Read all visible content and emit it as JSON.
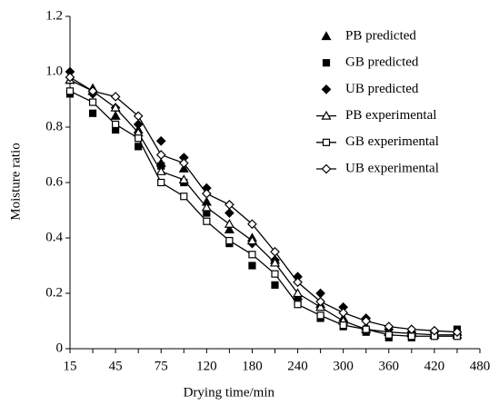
{
  "chart_data": {
    "type": "line",
    "x_label": "Drying time/min",
    "y_label": "Moisture ratio",
    "categories": [
      "15",
      null,
      "45",
      null,
      "75",
      null,
      "120",
      null,
      "180",
      null,
      "240",
      null,
      "300",
      null,
      "360",
      null,
      "420",
      null,
      "480"
    ],
    "ylim": [
      0,
      1.2
    ],
    "yticks": [
      0,
      0.2,
      0.4,
      0.6,
      0.8,
      {
        "value": 1,
        "label": "1.0"
      },
      {
        "value": 1.2,
        "label": "1.2"
      }
    ],
    "legend": "top-right",
    "series": [
      {
        "name": "PB predicted",
        "color": "#000000",
        "marker": "triangle",
        "filled": true,
        "line": false,
        "values": [
          0.97,
          0.94,
          0.84,
          0.79,
          0.67,
          0.65,
          0.53,
          0.43,
          0.4,
          0.32,
          0.19,
          0.16,
          0.11,
          0.08,
          0.06,
          0.06,
          0.05,
          0.06,
          null
        ]
      },
      {
        "name": "GB predicted",
        "color": "#000000",
        "marker": "square",
        "filled": true,
        "line": false,
        "values": [
          0.92,
          0.85,
          0.79,
          0.73,
          0.66,
          0.6,
          0.49,
          0.38,
          0.3,
          0.23,
          0.17,
          0.11,
          0.08,
          0.06,
          0.04,
          0.04,
          0.05,
          0.07,
          null
        ]
      },
      {
        "name": "UB predicted",
        "color": "#000000",
        "marker": "diamond",
        "filled": true,
        "line": false,
        "values": [
          1.0,
          0.92,
          0.87,
          0.81,
          0.75,
          0.69,
          0.58,
          0.49,
          0.38,
          0.32,
          0.26,
          0.2,
          0.15,
          0.11,
          0.07,
          0.06,
          0.06,
          0.05,
          null
        ]
      },
      {
        "name": "PB experimental",
        "color": "#000000",
        "marker": "triangle",
        "filled": false,
        "line": true,
        "values": [
          0.97,
          0.93,
          0.87,
          0.78,
          0.64,
          0.61,
          0.51,
          0.45,
          0.39,
          0.31,
          0.2,
          0.15,
          0.1,
          0.07,
          0.06,
          0.055,
          0.05,
          0.05,
          null
        ]
      },
      {
        "name": "GB experimental",
        "color": "#000000",
        "marker": "square",
        "filled": false,
        "line": true,
        "values": [
          0.93,
          0.89,
          0.81,
          0.76,
          0.6,
          0.55,
          0.46,
          0.39,
          0.34,
          0.27,
          0.16,
          0.12,
          0.085,
          0.07,
          0.05,
          0.045,
          0.045,
          0.045,
          null
        ]
      },
      {
        "name": "UB experimental",
        "color": "#000000",
        "marker": "diamond",
        "filled": false,
        "line": true,
        "values": [
          0.98,
          0.93,
          0.91,
          0.84,
          0.7,
          0.67,
          0.56,
          0.52,
          0.45,
          0.35,
          0.24,
          0.17,
          0.13,
          0.1,
          0.08,
          0.07,
          0.065,
          0.06,
          null
        ]
      }
    ]
  }
}
